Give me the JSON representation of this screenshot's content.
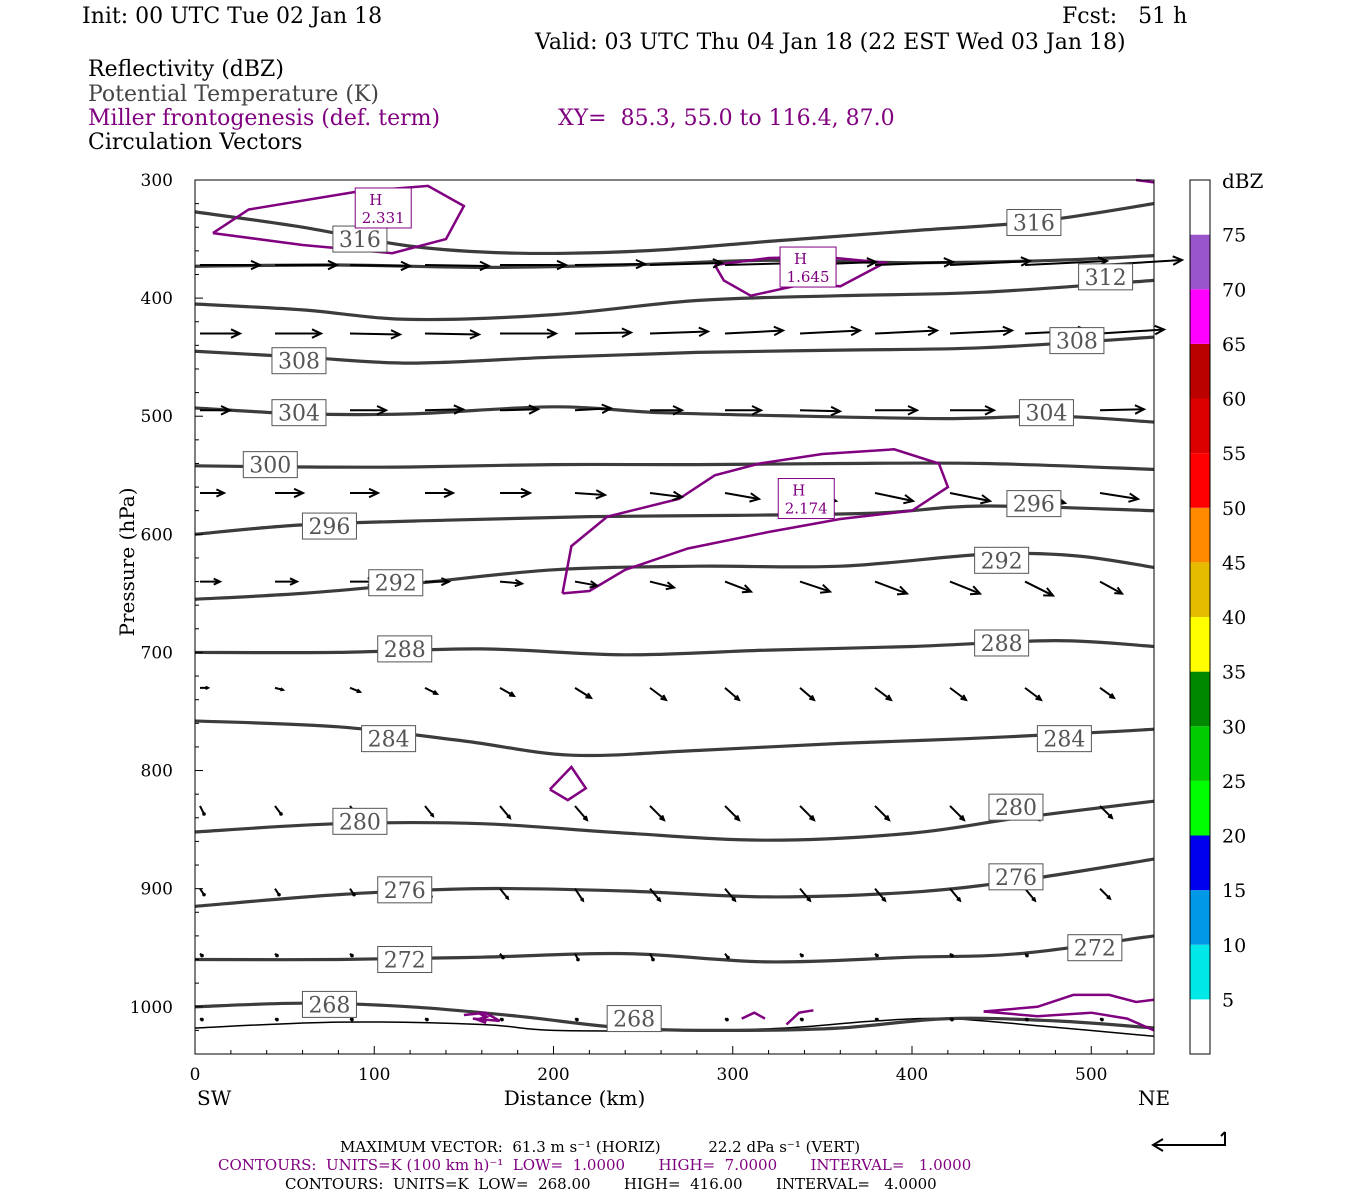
{
  "header": {
    "init": "Init: 00 UTC Tue 02 Jan 18",
    "fcst": "Fcst:   51 h",
    "valid": "Valid: 03 UTC Thu 04 Jan 18 (22 EST Wed 03 Jan 18)",
    "field_reflectivity": "Reflectivity (dBZ)",
    "field_theta": "Potential Temperature (K)",
    "field_frontogenesis": "Miller frontogenesis (def. term)",
    "xy": "XY=  85.3, 55.0 to 116.4, 87.0",
    "field_circulation": "Circulation Vectors"
  },
  "colors": {
    "theta": "#3c3c3c",
    "frontogenesis": "#800080",
    "vectors": "#000000"
  },
  "chart_data": {
    "type": "line",
    "title": "",
    "xlabel": "Distance (km)",
    "ylabel": "Pressure (hPa)",
    "xlim": [
      0,
      535
    ],
    "ylim": [
      1040,
      300
    ],
    "y_log_scale": false,
    "x_ticks": [
      0,
      100,
      200,
      300,
      400,
      500
    ],
    "y_ticks": [
      300,
      400,
      500,
      600,
      700,
      800,
      900,
      1000
    ],
    "x_end_labels": [
      "SW",
      "NE"
    ],
    "theta_isentropes": [
      {
        "value": 316,
        "points": [
          [
            0,
            327
          ],
          [
            60,
            340
          ],
          [
            120,
            356
          ],
          [
            180,
            362
          ],
          [
            250,
            360
          ],
          [
            320,
            352
          ],
          [
            400,
            343
          ],
          [
            470,
            335
          ],
          [
            535,
            320
          ]
        ],
        "labels": [
          {
            "text": "316",
            "x": 92,
            "p": 350
          },
          {
            "text": "316",
            "x": 468,
            "p": 336
          }
        ]
      },
      {
        "value": 312,
        "points": [
          [
            0,
            373
          ],
          [
            80,
            372
          ],
          [
            160,
            374
          ],
          [
            240,
            372
          ],
          [
            320,
            368
          ],
          [
            400,
            370
          ],
          [
            480,
            368
          ],
          [
            535,
            364
          ]
        ],
        "labels": [
          {
            "text": "312",
            "x": 508,
            "p": 382
          }
        ]
      },
      {
        "value": "",
        "points": [
          [
            0,
            405
          ],
          [
            60,
            410
          ],
          [
            120,
            418
          ],
          [
            200,
            414
          ],
          [
            280,
            402
          ],
          [
            360,
            398
          ],
          [
            440,
            395
          ],
          [
            535,
            385
          ]
        ],
        "labels": []
      },
      {
        "value": 308,
        "points": [
          [
            0,
            445
          ],
          [
            60,
            450
          ],
          [
            120,
            455
          ],
          [
            200,
            450
          ],
          [
            280,
            446
          ],
          [
            360,
            444
          ],
          [
            440,
            442
          ],
          [
            535,
            433
          ]
        ],
        "labels": [
          {
            "text": "308",
            "x": 58,
            "p": 453
          },
          {
            "text": "308",
            "x": 492,
            "p": 436
          }
        ]
      },
      {
        "value": 304,
        "points": [
          [
            0,
            493
          ],
          [
            60,
            498
          ],
          [
            120,
            498
          ],
          [
            200,
            492
          ],
          [
            260,
            497
          ],
          [
            340,
            500
          ],
          [
            420,
            502
          ],
          [
            480,
            500
          ],
          [
            535,
            505
          ]
        ],
        "labels": [
          {
            "text": "304",
            "x": 58,
            "p": 497
          },
          {
            "text": "304",
            "x": 475,
            "p": 497
          }
        ]
      },
      {
        "value": 300,
        "points": [
          [
            0,
            542
          ],
          [
            60,
            543
          ],
          [
            120,
            543
          ],
          [
            200,
            541
          ],
          [
            280,
            541
          ],
          [
            360,
            540
          ],
          [
            440,
            540
          ],
          [
            535,
            545
          ]
        ],
        "labels": [
          {
            "text": "300",
            "x": 42,
            "p": 541
          }
        ]
      },
      {
        "value": 296,
        "points": [
          [
            0,
            600
          ],
          [
            60,
            592
          ],
          [
            140,
            588
          ],
          [
            220,
            585
          ],
          [
            300,
            584
          ],
          [
            380,
            582
          ],
          [
            440,
            576
          ],
          [
            535,
            580
          ]
        ],
        "labels": [
          {
            "text": "296",
            "x": 75,
            "p": 593
          },
          {
            "text": "296",
            "x": 468,
            "p": 574
          }
        ]
      },
      {
        "value": 292,
        "points": [
          [
            0,
            655
          ],
          [
            60,
            650
          ],
          [
            120,
            642
          ],
          [
            200,
            630
          ],
          [
            280,
            627
          ],
          [
            360,
            627
          ],
          [
            440,
            617
          ],
          [
            490,
            618
          ],
          [
            535,
            628
          ]
        ],
        "labels": [
          {
            "text": "292",
            "x": 112,
            "p": 641
          },
          {
            "text": "292",
            "x": 450,
            "p": 622
          }
        ]
      },
      {
        "value": 288,
        "points": [
          [
            0,
            700
          ],
          [
            80,
            700
          ],
          [
            160,
            697
          ],
          [
            240,
            702
          ],
          [
            320,
            698
          ],
          [
            400,
            695
          ],
          [
            480,
            690
          ],
          [
            535,
            695
          ]
        ],
        "labels": [
          {
            "text": "288",
            "x": 117,
            "p": 697
          },
          {
            "text": "288",
            "x": 450,
            "p": 692
          }
        ]
      },
      {
        "value": 284,
        "points": [
          [
            0,
            758
          ],
          [
            80,
            763
          ],
          [
            150,
            775
          ],
          [
            210,
            787
          ],
          [
            280,
            783
          ],
          [
            360,
            777
          ],
          [
            430,
            773
          ],
          [
            500,
            768
          ],
          [
            535,
            765
          ]
        ],
        "labels": [
          {
            "text": "284",
            "x": 108,
            "p": 773
          },
          {
            "text": "284",
            "x": 485,
            "p": 773
          }
        ]
      },
      {
        "value": 280,
        "points": [
          [
            0,
            852
          ],
          [
            80,
            845
          ],
          [
            160,
            845
          ],
          [
            240,
            853
          ],
          [
            320,
            859
          ],
          [
            400,
            853
          ],
          [
            460,
            840
          ],
          [
            535,
            826
          ]
        ],
        "labels": [
          {
            "text": "280",
            "x": 92,
            "p": 843
          },
          {
            "text": "280",
            "x": 458,
            "p": 831
          }
        ]
      },
      {
        "value": 276,
        "points": [
          [
            0,
            915
          ],
          [
            80,
            905
          ],
          [
            160,
            900
          ],
          [
            240,
            902
          ],
          [
            320,
            907
          ],
          [
            400,
            903
          ],
          [
            460,
            893
          ],
          [
            535,
            875
          ]
        ],
        "labels": [
          {
            "text": "276",
            "x": 117,
            "p": 901
          },
          {
            "text": "276",
            "x": 458,
            "p": 890
          }
        ]
      },
      {
        "value": 272,
        "points": [
          [
            0,
            960
          ],
          [
            80,
            960
          ],
          [
            160,
            958
          ],
          [
            240,
            955
          ],
          [
            320,
            962
          ],
          [
            400,
            958
          ],
          [
            460,
            955
          ],
          [
            535,
            940
          ]
        ],
        "labels": [
          {
            "text": "272",
            "x": 117,
            "p": 960
          },
          {
            "text": "272",
            "x": 502,
            "p": 950
          }
        ]
      },
      {
        "value": 268,
        "points": [
          [
            0,
            1000
          ],
          [
            60,
            997
          ],
          [
            120,
            1000
          ],
          [
            180,
            1008
          ],
          [
            240,
            1018
          ],
          [
            300,
            1020
          ],
          [
            360,
            1018
          ],
          [
            420,
            1010
          ],
          [
            480,
            1012
          ],
          [
            535,
            1018
          ]
        ],
        "labels": [
          {
            "text": "268",
            "x": 75,
            "p": 998
          },
          {
            "text": "268",
            "x": 245,
            "p": 1010
          }
        ]
      }
    ],
    "frontogenesis_maxima": [
      {
        "label": "H",
        "value": "2.331",
        "x": 105,
        "p": 322
      },
      {
        "label": "H",
        "value": "1.645",
        "x": 342,
        "p": 372
      },
      {
        "label": "H",
        "value": "2.174",
        "x": 341,
        "p": 568
      }
    ],
    "reflectivity_colorbar": {
      "unit": "dBZ",
      "levels": [
        5,
        10,
        15,
        20,
        25,
        30,
        35,
        40,
        45,
        50,
        55,
        60,
        65,
        70,
        75
      ],
      "colors": [
        "#ffffff",
        "#00e8e8",
        "#0099e8",
        "#0000ee",
        "#00ff00",
        "#00cc00",
        "#008800",
        "#ffff00",
        "#e6bc00",
        "#ff8a00",
        "#ff0000",
        "#dd0000",
        "#bb0000",
        "#ff00ff",
        "#9955cc",
        "#ffffff"
      ]
    }
  },
  "footer": {
    "max_vector": "MAXIMUM VECTOR:  61.3 m s⁻¹ (HORIZ)          22.2 dPa s⁻¹ (VERT)",
    "contours_fronto": "CONTOURS:  UNITS=K (100 km h)⁻¹  LOW=  1.0000       HIGH=  7.0000       INTERVAL=   1.0000",
    "contours_theta": "CONTOURS:  UNITS=K  LOW=  268.00       HIGH=  416.00       INTERVAL=   4.0000"
  }
}
